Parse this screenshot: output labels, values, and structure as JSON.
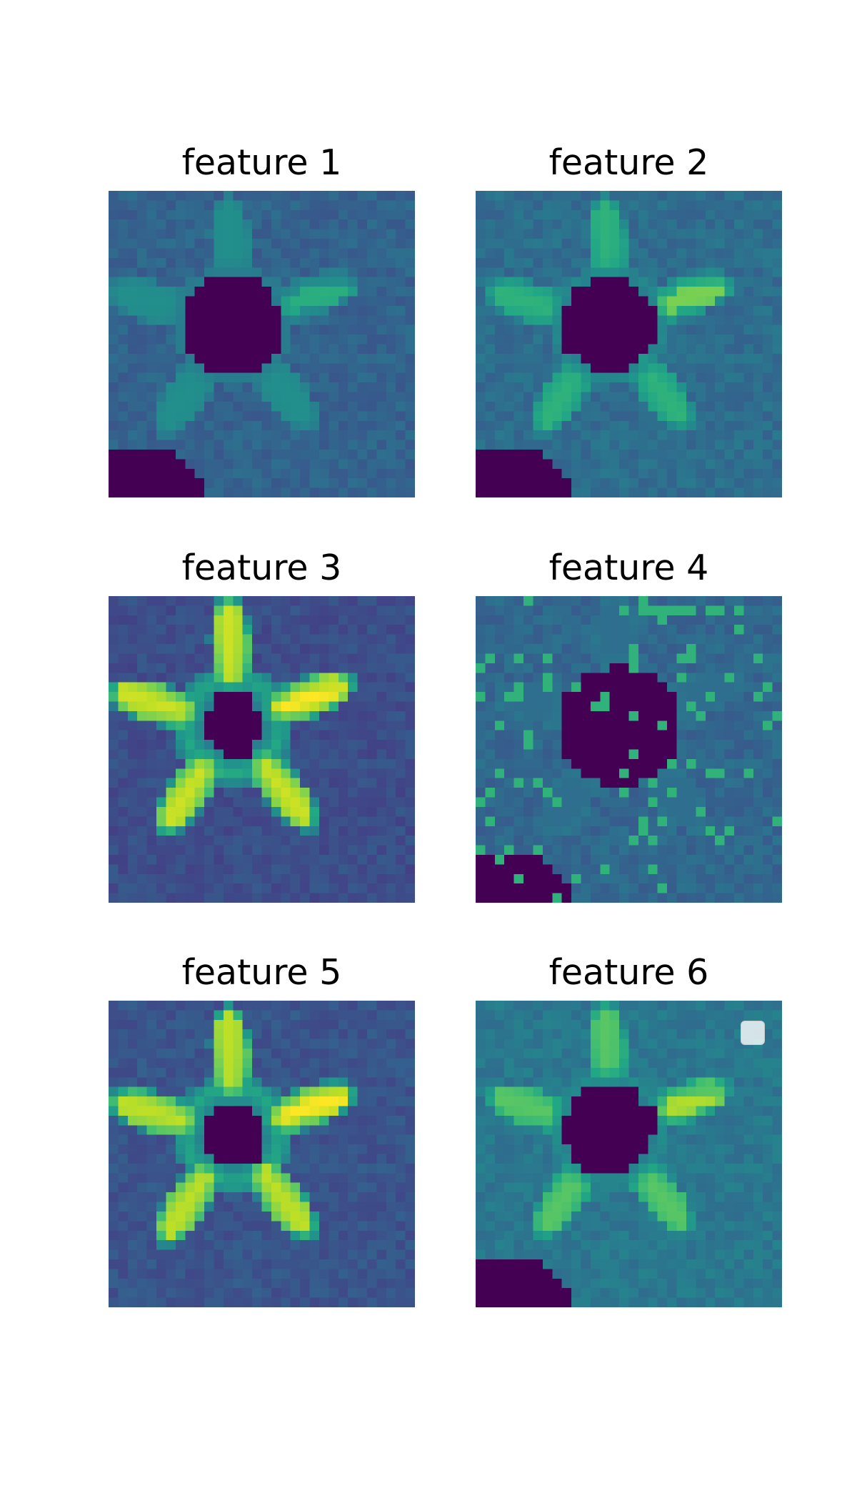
{
  "figure": {
    "colormap": "viridis",
    "grid_size": 32,
    "panels": [
      {
        "id": 1,
        "title": "feature 1"
      },
      {
        "id": 2,
        "title": "feature 2"
      },
      {
        "id": 3,
        "title": "feature 3"
      },
      {
        "id": 4,
        "title": "feature 4"
      },
      {
        "id": 5,
        "title": "feature 5"
      },
      {
        "id": 6,
        "title": "feature 6",
        "has_legend": true
      }
    ]
  }
}
